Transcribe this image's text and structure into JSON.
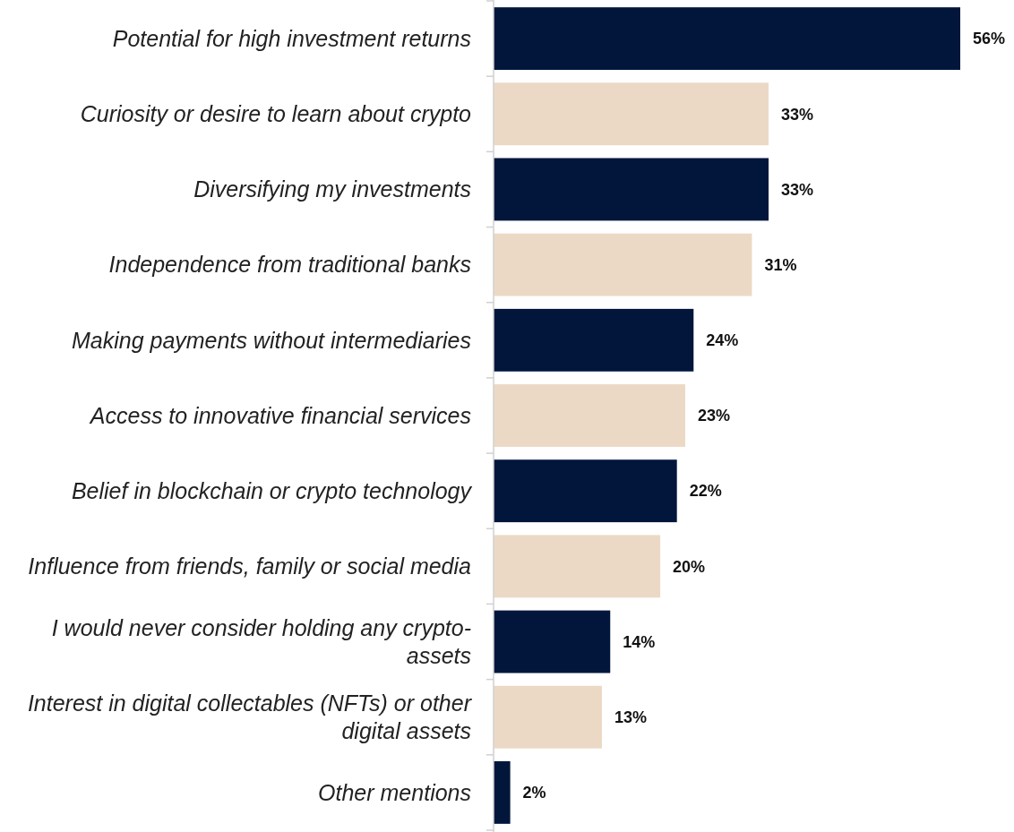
{
  "chart_data": {
    "type": "bar",
    "orientation": "horizontal",
    "categories": [
      "Potential for high investment returns",
      "Curiosity or desire to learn about crypto",
      "Diversifying my investments",
      "Independence from traditional banks",
      "Making payments without intermediaries",
      "Access to innovative financial services",
      "Belief in blockchain or crypto technology",
      "Influence from friends, family or social media",
      "I would never consider holding any crypto-assets",
      "Interest in digital collectables (NFTs) or other digital assets",
      "Other mentions"
    ],
    "values": [
      56,
      33,
      33,
      31,
      24,
      23,
      22,
      20,
      14,
      13,
      2
    ],
    "value_labels": [
      "56%",
      "33%",
      "33%",
      "31%",
      "24%",
      "23%",
      "22%",
      "20%",
      "14%",
      "13%",
      "2%"
    ],
    "colors": [
      "#02163c",
      "#ecd9c5",
      "#02163c",
      "#ecd9c5",
      "#02163c",
      "#ecd9c5",
      "#02163c",
      "#ecd9c5",
      "#02163c",
      "#ecd9c5",
      "#02163c"
    ]
  }
}
